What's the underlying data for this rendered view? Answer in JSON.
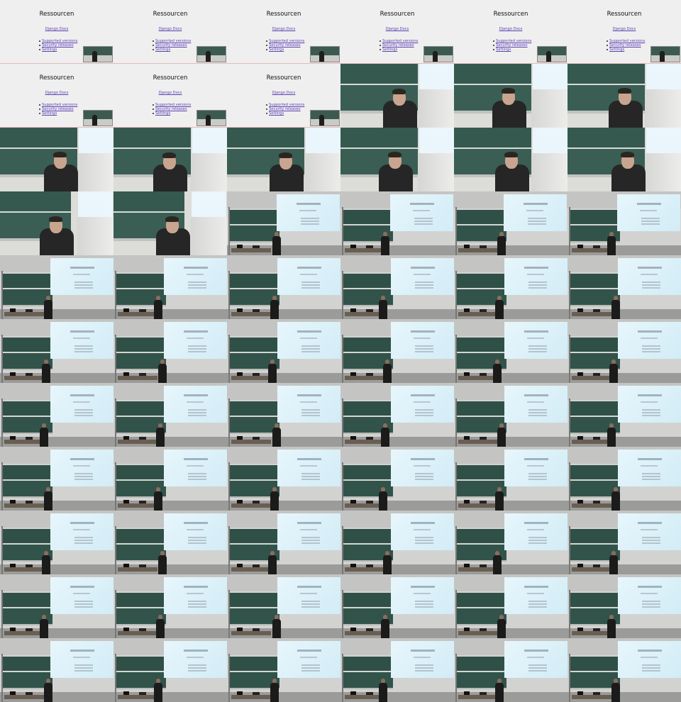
{
  "slide": {
    "title": "Ressourcen",
    "link": "Django Docs",
    "items": [
      "Supported versions",
      "Security releases",
      "Settings"
    ]
  },
  "frames": [
    "slide",
    "slide",
    "slide",
    "slide",
    "slide",
    "slide",
    "slide",
    "slide",
    "slide",
    "close",
    "close",
    "close",
    "close",
    "close",
    "close",
    "close",
    "close",
    "close",
    "close",
    "close",
    "wide",
    "wide",
    "wide",
    "wide",
    "wide",
    "wide",
    "wide",
    "wide",
    "wide",
    "wide",
    "wide",
    "wide",
    "wide",
    "wide",
    "wide",
    "wide",
    "wide",
    "wide",
    "wide",
    "wide",
    "wide",
    "wide",
    "wide",
    "wide",
    "wide",
    "wide",
    "wide",
    "wide",
    "wide",
    "wide",
    "wide",
    "wide",
    "wide",
    "wide",
    "wide",
    "wide",
    "wide",
    "wide",
    "wide",
    "wide",
    "wide",
    "wide",
    "wide",
    "wide",
    "wide",
    "wide"
  ],
  "colors": {
    "slide_bg": "#efefef",
    "link": "#5a3fb0",
    "chalkboard": "#35594f",
    "projection": "#e7f6fc",
    "hoodie": "#262626"
  }
}
